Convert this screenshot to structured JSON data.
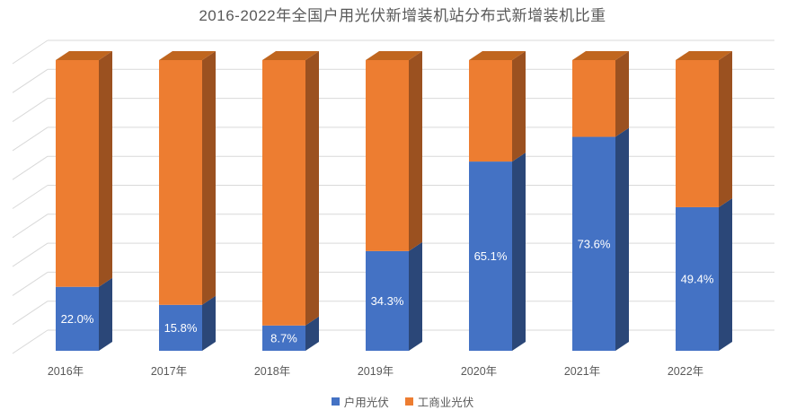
{
  "chart_data": {
    "type": "bar",
    "variant": "3d-100-percent-stacked-column",
    "title": "2016-2022年全国户用光伏新增装机站分布式新增装机比重",
    "categories": [
      "2016年",
      "2017年",
      "2018年",
      "2019年",
      "2020年",
      "2021年",
      "2022年"
    ],
    "series": [
      {
        "name": "户用光伏",
        "values": [
          22.0,
          15.8,
          8.7,
          34.3,
          65.1,
          73.6,
          49.4
        ],
        "data_labels": [
          "22.0%",
          "15.8%",
          "8.7%",
          "34.3%",
          "65.1%",
          "73.6%",
          "49.4%"
        ],
        "color": "#4472C4",
        "side_color": "#2B4778"
      },
      {
        "name": "工商业光伏",
        "values": [
          78.0,
          84.2,
          91.3,
          65.7,
          34.9,
          26.4,
          50.6
        ],
        "data_labels": [],
        "color": "#ED7D31",
        "side_color": "#9B5120",
        "top_color": "#C0661F"
      }
    ],
    "ylim": [
      0,
      100
    ],
    "grid_on": true,
    "gridline_count": 11,
    "legend_position": "bottom",
    "title_color": "#595959",
    "axis_text_color": "#595959",
    "data_label_color": "#FFFFFF",
    "gridline_color": "#D9D9D9",
    "background_color": "#FFFFFF"
  }
}
